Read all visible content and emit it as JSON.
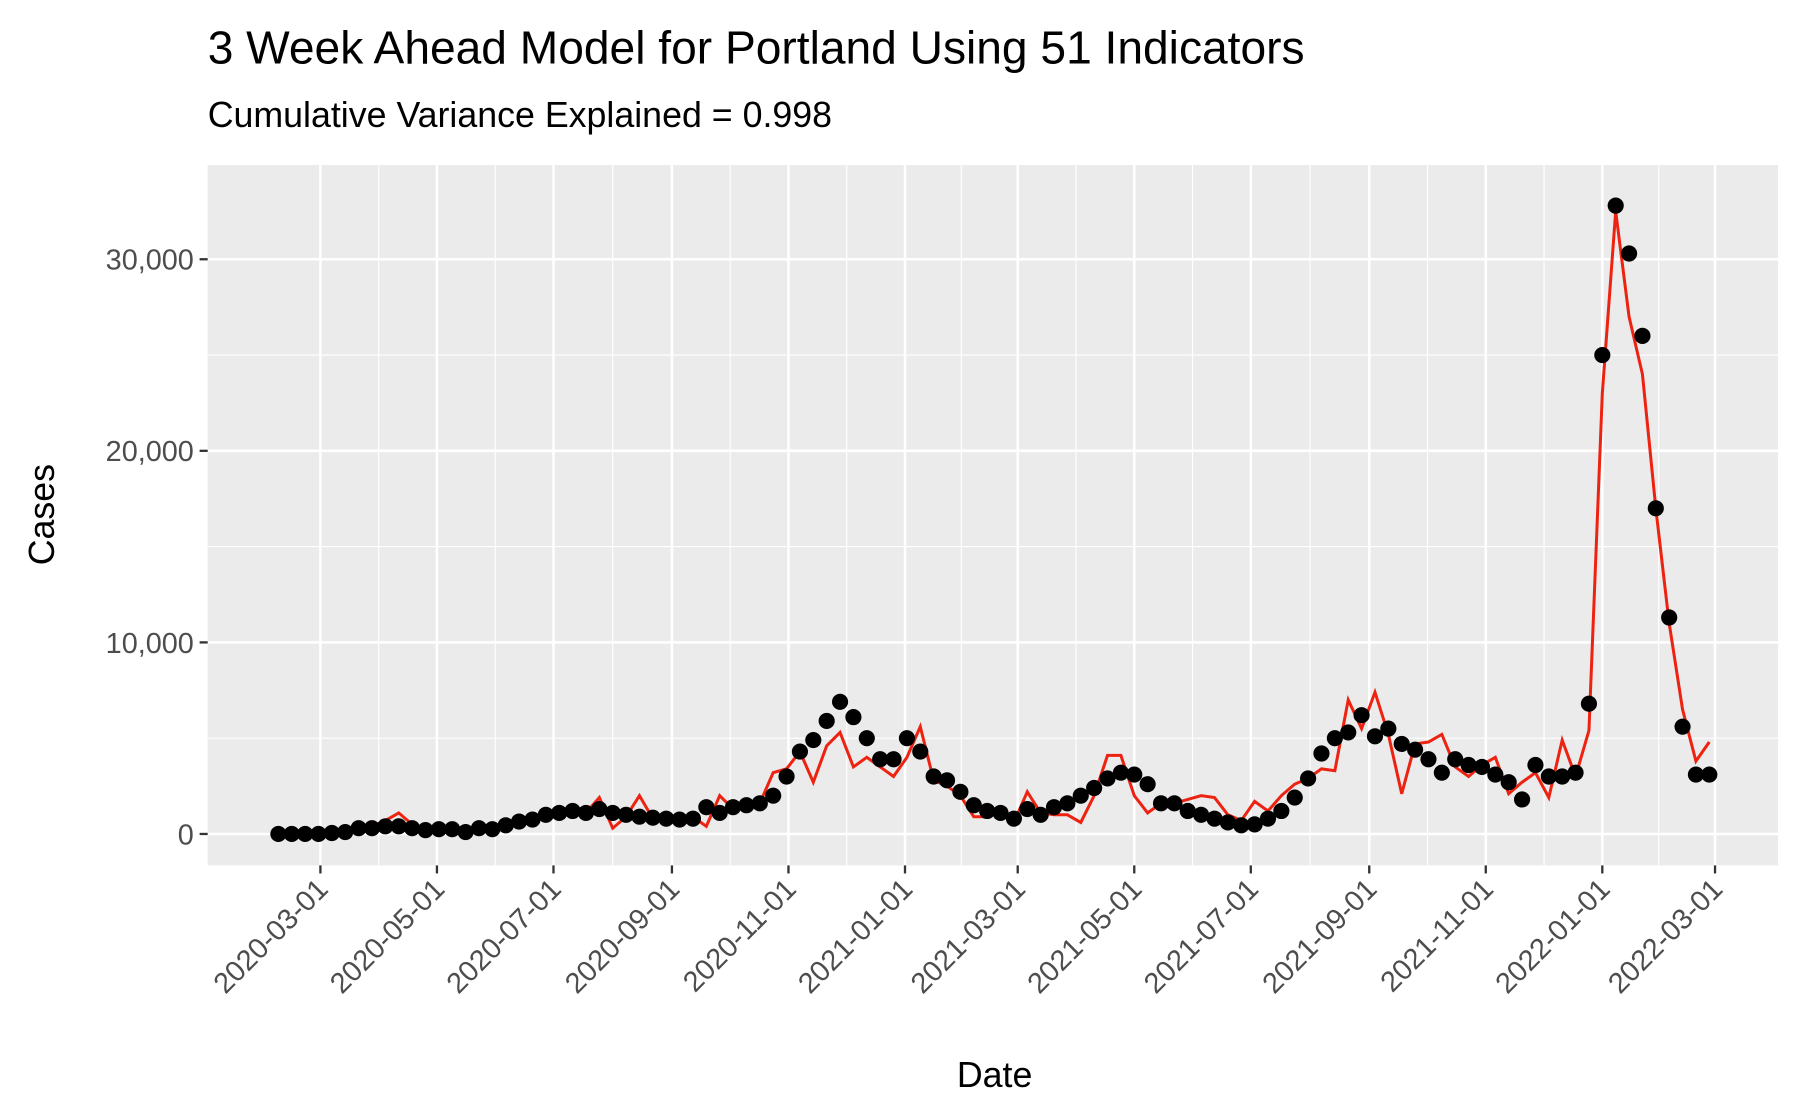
{
  "chart_data": {
    "type": "line",
    "title": "3 Week Ahead Model for Portland Using 51 Indicators",
    "subtitle": "Cumulative Variance Explained = 0.998",
    "x_label": "Date",
    "y_label": "Cases",
    "x": [
      "2020-02-08",
      "2020-02-15",
      "2020-02-22",
      "2020-02-29",
      "2020-03-07",
      "2020-03-14",
      "2020-03-21",
      "2020-03-28",
      "2020-04-04",
      "2020-04-11",
      "2020-04-18",
      "2020-04-25",
      "2020-05-02",
      "2020-05-09",
      "2020-05-16",
      "2020-05-23",
      "2020-05-30",
      "2020-06-06",
      "2020-06-13",
      "2020-06-20",
      "2020-06-27",
      "2020-07-04",
      "2020-07-11",
      "2020-07-18",
      "2020-07-25",
      "2020-08-01",
      "2020-08-08",
      "2020-08-15",
      "2020-08-22",
      "2020-08-29",
      "2020-09-05",
      "2020-09-12",
      "2020-09-19",
      "2020-09-26",
      "2020-10-03",
      "2020-10-10",
      "2020-10-17",
      "2020-10-24",
      "2020-10-31",
      "2020-11-07",
      "2020-11-14",
      "2020-11-21",
      "2020-11-28",
      "2020-12-05",
      "2020-12-12",
      "2020-12-19",
      "2020-12-26",
      "2021-01-02",
      "2021-01-09",
      "2021-01-16",
      "2021-01-23",
      "2021-01-30",
      "2021-02-06",
      "2021-02-13",
      "2021-02-20",
      "2021-02-27",
      "2021-03-06",
      "2021-03-13",
      "2021-03-20",
      "2021-03-27",
      "2021-04-03",
      "2021-04-10",
      "2021-04-17",
      "2021-04-24",
      "2021-05-01",
      "2021-05-08",
      "2021-05-15",
      "2021-05-22",
      "2021-05-29",
      "2021-06-05",
      "2021-06-12",
      "2021-06-19",
      "2021-06-26",
      "2021-07-03",
      "2021-07-10",
      "2021-07-17",
      "2021-07-24",
      "2021-07-31",
      "2021-08-07",
      "2021-08-14",
      "2021-08-21",
      "2021-08-28",
      "2021-09-04",
      "2021-09-11",
      "2021-09-18",
      "2021-09-25",
      "2021-10-02",
      "2021-10-09",
      "2021-10-16",
      "2021-10-23",
      "2021-10-30",
      "2021-11-06",
      "2021-11-13",
      "2021-11-20",
      "2021-11-27",
      "2021-12-04",
      "2021-12-11",
      "2021-12-18",
      "2021-12-25",
      "2022-01-01",
      "2022-01-08",
      "2022-01-15",
      "2022-01-22",
      "2022-01-29",
      "2022-02-05",
      "2022-02-12",
      "2022-02-19",
      "2022-02-26"
    ],
    "series": [
      {
        "color": "#ee2211",
        "style": "line",
        "values": [
          0,
          0,
          0,
          0,
          0,
          100,
          300,
          400,
          700,
          1100,
          500,
          200,
          200,
          300,
          100,
          300,
          300,
          500,
          700,
          800,
          900,
          1100,
          1300,
          1100,
          1900,
          300,
          900,
          2000,
          800,
          900,
          800,
          900,
          400,
          2000,
          1300,
          1500,
          1600,
          3200,
          3400,
          4300,
          2700,
          4600,
          5300,
          3500,
          4000,
          3500,
          3000,
          4000,
          5600,
          2800,
          2500,
          2000,
          900,
          900,
          1200,
          600,
          2200,
          1100,
          1000,
          1000,
          600,
          2000,
          4100,
          4100,
          2000,
          1100,
          1600,
          1600,
          1800,
          2000,
          1900,
          1000,
          700,
          1700,
          1200,
          2000,
          2600,
          2900,
          3400,
          3300,
          7000,
          5500,
          7400,
          5200,
          2100,
          4700,
          4800,
          5200,
          3500,
          3000,
          3600,
          4000,
          2100,
          2700,
          3200,
          1900,
          4900,
          3000,
          5400,
          23000,
          32500,
          27000,
          24000,
          17000,
          11000,
          6500,
          3800,
          4800
        ]
      },
      {
        "color": "#000000",
        "style": "points",
        "values": [
          0,
          0,
          0,
          0,
          50,
          100,
          300,
          300,
          400,
          400,
          300,
          200,
          250,
          250,
          100,
          300,
          250,
          450,
          650,
          750,
          1000,
          1100,
          1200,
          1100,
          1300,
          1100,
          1000,
          900,
          850,
          800,
          750,
          800,
          1400,
          1100,
          1400,
          1500,
          1600,
          2000,
          3000,
          4300,
          4900,
          5900,
          6900,
          6100,
          5000,
          3900,
          3900,
          5000,
          4300,
          3000,
          2800,
          2200,
          1500,
          1200,
          1100,
          800,
          1300,
          1000,
          1400,
          1600,
          2000,
          2400,
          2900,
          3200,
          3100,
          2600,
          1600,
          1600,
          1200,
          1000,
          800,
          600,
          450,
          500,
          800,
          1200,
          1900,
          2900,
          4200,
          5000,
          5300,
          6200,
          5100,
          5500,
          4700,
          4400,
          3900,
          3200,
          3900,
          3600,
          3500,
          3100,
          2700,
          1800,
          3600,
          3000,
          3000,
          3200,
          6800,
          25000,
          32800,
          30300,
          26000,
          17000,
          11300,
          5600,
          3100,
          3100
        ]
      }
    ],
    "xlim": [
      "2020-01-02",
      "2022-04-03"
    ],
    "xticks": [
      "2020-03-01",
      "2020-05-01",
      "2020-07-01",
      "2020-09-01",
      "2020-11-01",
      "2021-01-01",
      "2021-03-01",
      "2021-05-01",
      "2021-07-01",
      "2021-09-01",
      "2021-11-01",
      "2022-01-01",
      "2022-03-01"
    ],
    "ylim": [
      -1640,
      34920
    ],
    "yticks": [
      0,
      {
        "value": 10000,
        "label": "10,000"
      },
      {
        "value": 20000,
        "label": "20,000"
      },
      {
        "value": 30000,
        "label": "30,000"
      }
    ],
    "grid": true
  }
}
